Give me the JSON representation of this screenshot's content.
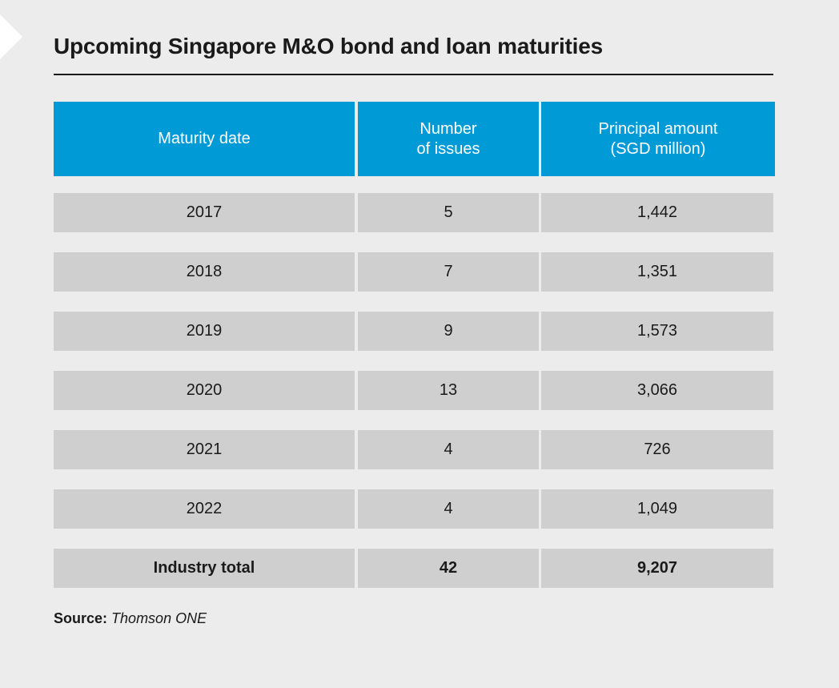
{
  "title": "Upcoming Singapore M&O bond and loan maturities",
  "source": {
    "label": "Source:",
    "value": "Thomson ONE"
  },
  "chart_data": {
    "type": "table",
    "title": "Upcoming Singapore M&O bond and loan maturities",
    "columns": [
      "Maturity date",
      "Number of issues",
      "Principal amount (SGD million)"
    ],
    "header_lines": [
      [
        "Maturity date"
      ],
      [
        "Number",
        "of issues"
      ],
      [
        "Principal amount",
        "(SGD million)"
      ]
    ],
    "rows": [
      {
        "maturity": "2017",
        "issues": "5",
        "principal": "1,442"
      },
      {
        "maturity": "2018",
        "issues": "7",
        "principal": "1,351"
      },
      {
        "maturity": "2019",
        "issues": "9",
        "principal": "1,573"
      },
      {
        "maturity": "2020",
        "issues": "13",
        "principal": "3,066"
      },
      {
        "maturity": "2021",
        "issues": "4",
        "principal": "726"
      },
      {
        "maturity": "2022",
        "issues": "4",
        "principal": "1,049"
      }
    ],
    "total": {
      "maturity": "Industry total",
      "issues": "42",
      "principal": "9,207"
    }
  },
  "colors": {
    "header_background": "#009ad6",
    "row_background": "#cfcfcf",
    "page_background": "#ececec"
  }
}
